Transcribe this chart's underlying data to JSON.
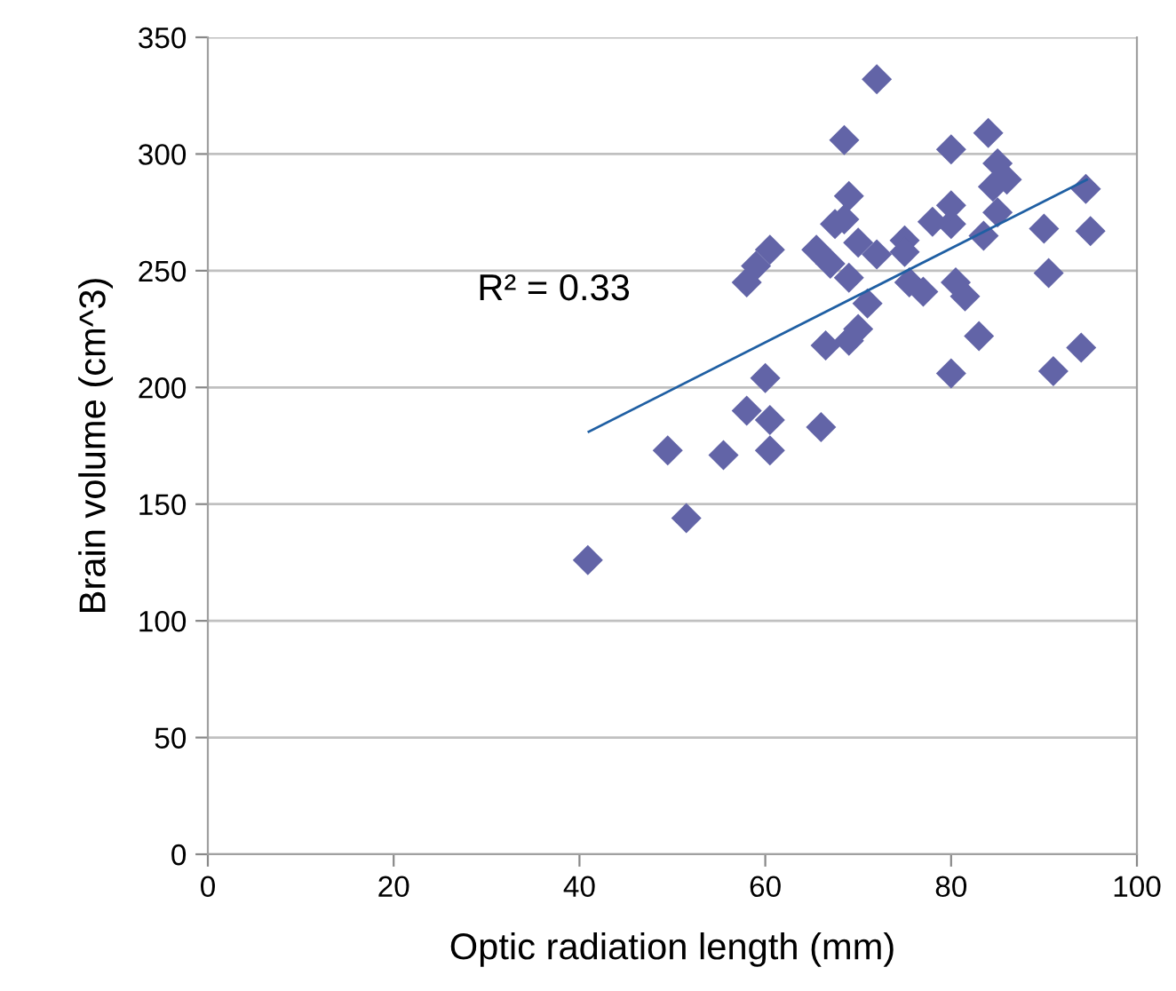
{
  "chart_data": {
    "type": "scatter",
    "xlabel": "Optic radiation length (mm)",
    "ylabel": "Brain volume (cm^3)",
    "xlim": [
      0,
      100
    ],
    "xticks": [
      0,
      20,
      40,
      60,
      80,
      100
    ],
    "ylim": [
      0,
      350
    ],
    "yticks": [
      0,
      50,
      100,
      150,
      200,
      250,
      300,
      350
    ],
    "grid": "y",
    "marker": "diamond",
    "legend": false,
    "annotations": [
      "R² = 0.33"
    ],
    "series": [
      {
        "color": "#6264a7",
        "x": [
          40.9,
          49.5,
          51.5,
          55.5,
          58,
          58,
          59,
          60,
          60.5,
          60.5,
          60.5,
          66,
          65.5,
          66.5,
          67,
          67.5,
          68.5,
          68.5,
          69,
          69,
          69,
          70,
          70,
          71,
          72,
          72,
          75,
          75.5,
          75,
          77,
          80,
          80,
          80,
          80.5,
          81.5,
          83,
          83.5,
          84,
          84.5,
          85,
          85,
          86,
          90,
          90.5,
          91,
          94,
          94.5,
          95,
          80,
          78
        ],
        "values": [
          126,
          173,
          144,
          171,
          190,
          245,
          252,
          204,
          186,
          173,
          259,
          183,
          259,
          218,
          253,
          270,
          306,
          272,
          282,
          247,
          220,
          225,
          262,
          236,
          332,
          257,
          263,
          245,
          258,
          241,
          206,
          302,
          270,
          245,
          239,
          222,
          265,
          309,
          286,
          296,
          275,
          289,
          268,
          249,
          207,
          217,
          285,
          267,
          278,
          271
        ]
      },
      {
        "type": "line",
        "color": "#1f5fa3",
        "marker": "none",
        "line_style": "solid",
        "x": [
          41,
          94.6
        ],
        "values": [
          181,
          289
        ]
      }
    ]
  }
}
